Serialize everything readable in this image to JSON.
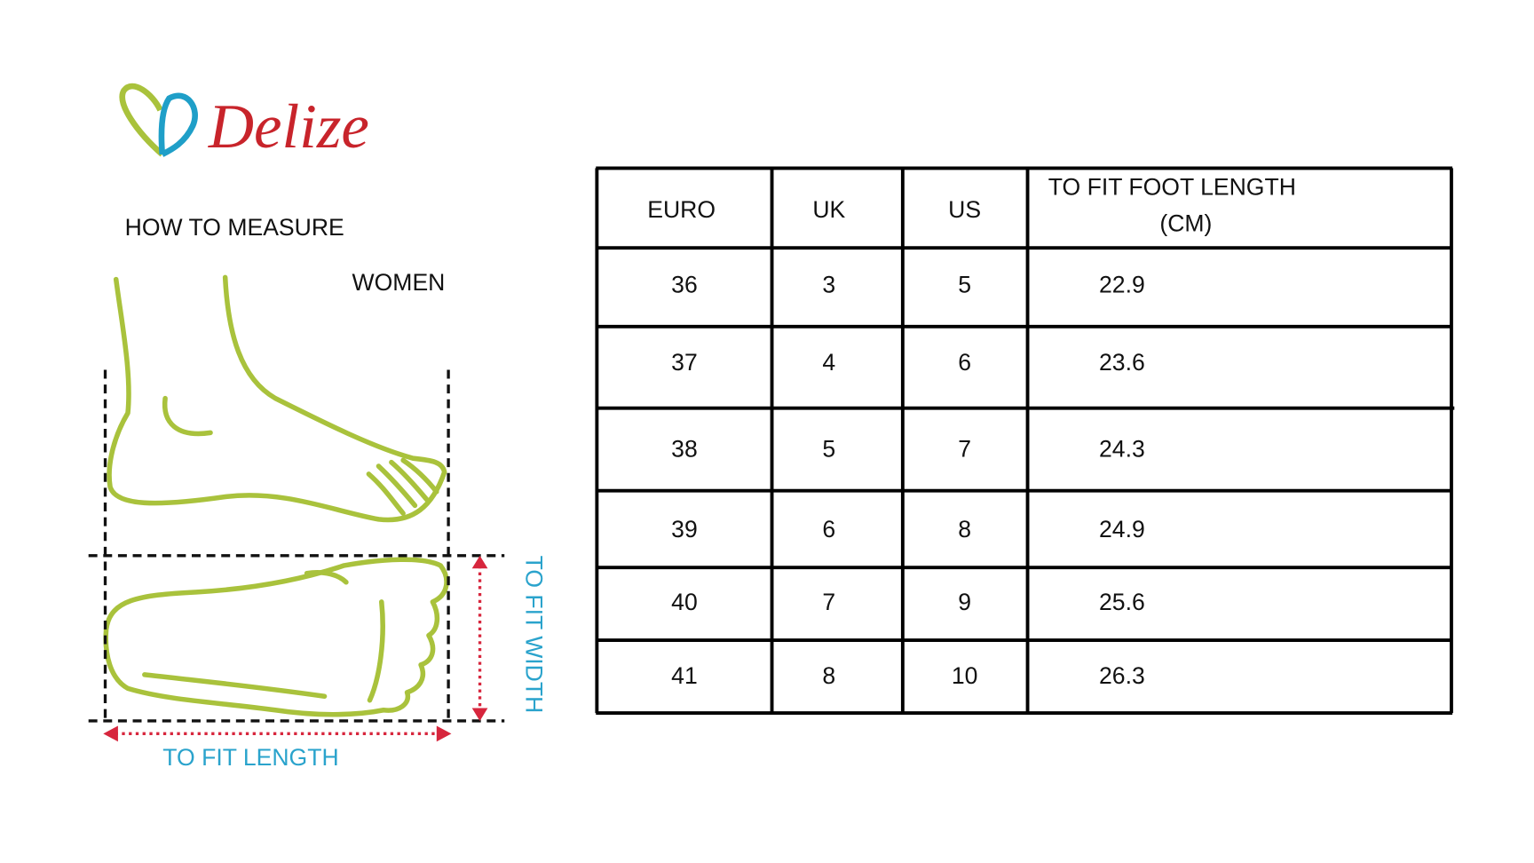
{
  "logo": {
    "brand": "Delize"
  },
  "guide": {
    "title": "HOW TO MEASURE",
    "group": "WOMEN",
    "width_label": "TO FIT WIDTH",
    "length_label": "TO FIT LENGTH"
  },
  "table": {
    "header": [
      "EURO",
      "UK",
      "US",
      "TO FIT FOOT LENGTH"
    ],
    "header_unit": "(CM)",
    "rows": [
      [
        "36",
        "3",
        "5",
        "22.9"
      ],
      [
        "37",
        "4",
        "6",
        "23.6"
      ],
      [
        "38",
        "5",
        "7",
        "24.3"
      ],
      [
        "39",
        "6",
        "8",
        "24.9"
      ],
      [
        "40",
        "7",
        "9",
        "25.6"
      ],
      [
        "41",
        "8",
        "10",
        "26.3"
      ]
    ]
  }
}
